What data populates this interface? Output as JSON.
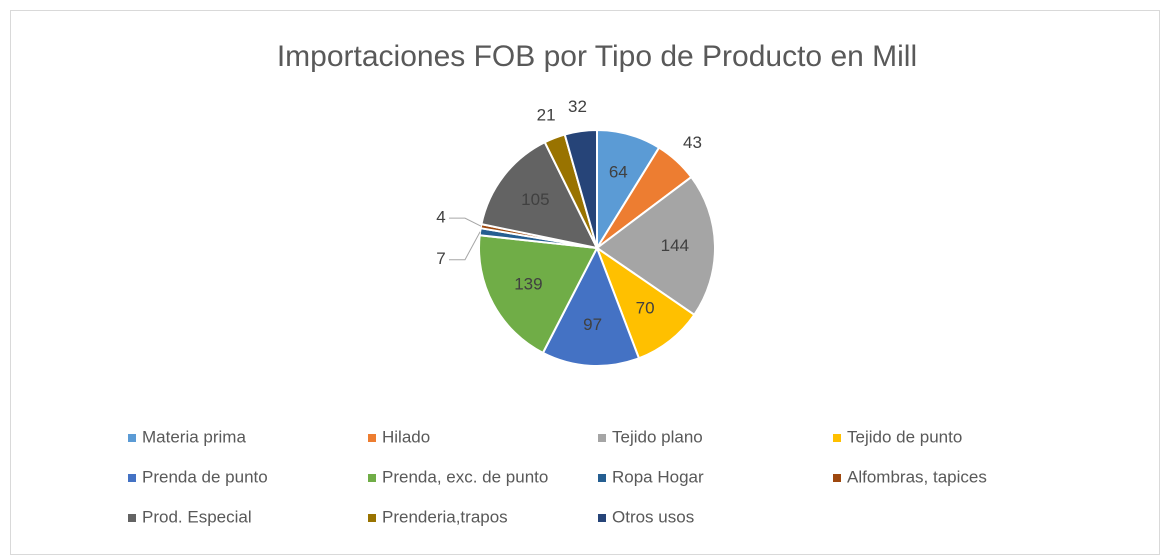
{
  "chart_data": {
    "type": "pie",
    "title": "Importaciones FOB por Tipo de Producto en Mill",
    "categories": [
      "Materia prima",
      "Hilado",
      "Tejido plano",
      "Tejido de punto",
      "Prenda de punto",
      "Prenda, exc. de punto",
      "Ropa Hogar",
      "Alfombras, tapices",
      "Prod. Especial",
      "Prenderia,trapos",
      "Otros usos"
    ],
    "values": [
      64,
      43,
      144,
      70,
      97,
      139,
      7,
      4,
      105,
      21,
      32
    ],
    "colors": [
      "#5b9bd5",
      "#ed7d31",
      "#a5a5a5",
      "#ffc000",
      "#4472c4",
      "#70ad47",
      "#255e91",
      "#9e480e",
      "#636363",
      "#997300",
      "#264478"
    ],
    "legend": "bottom"
  }
}
